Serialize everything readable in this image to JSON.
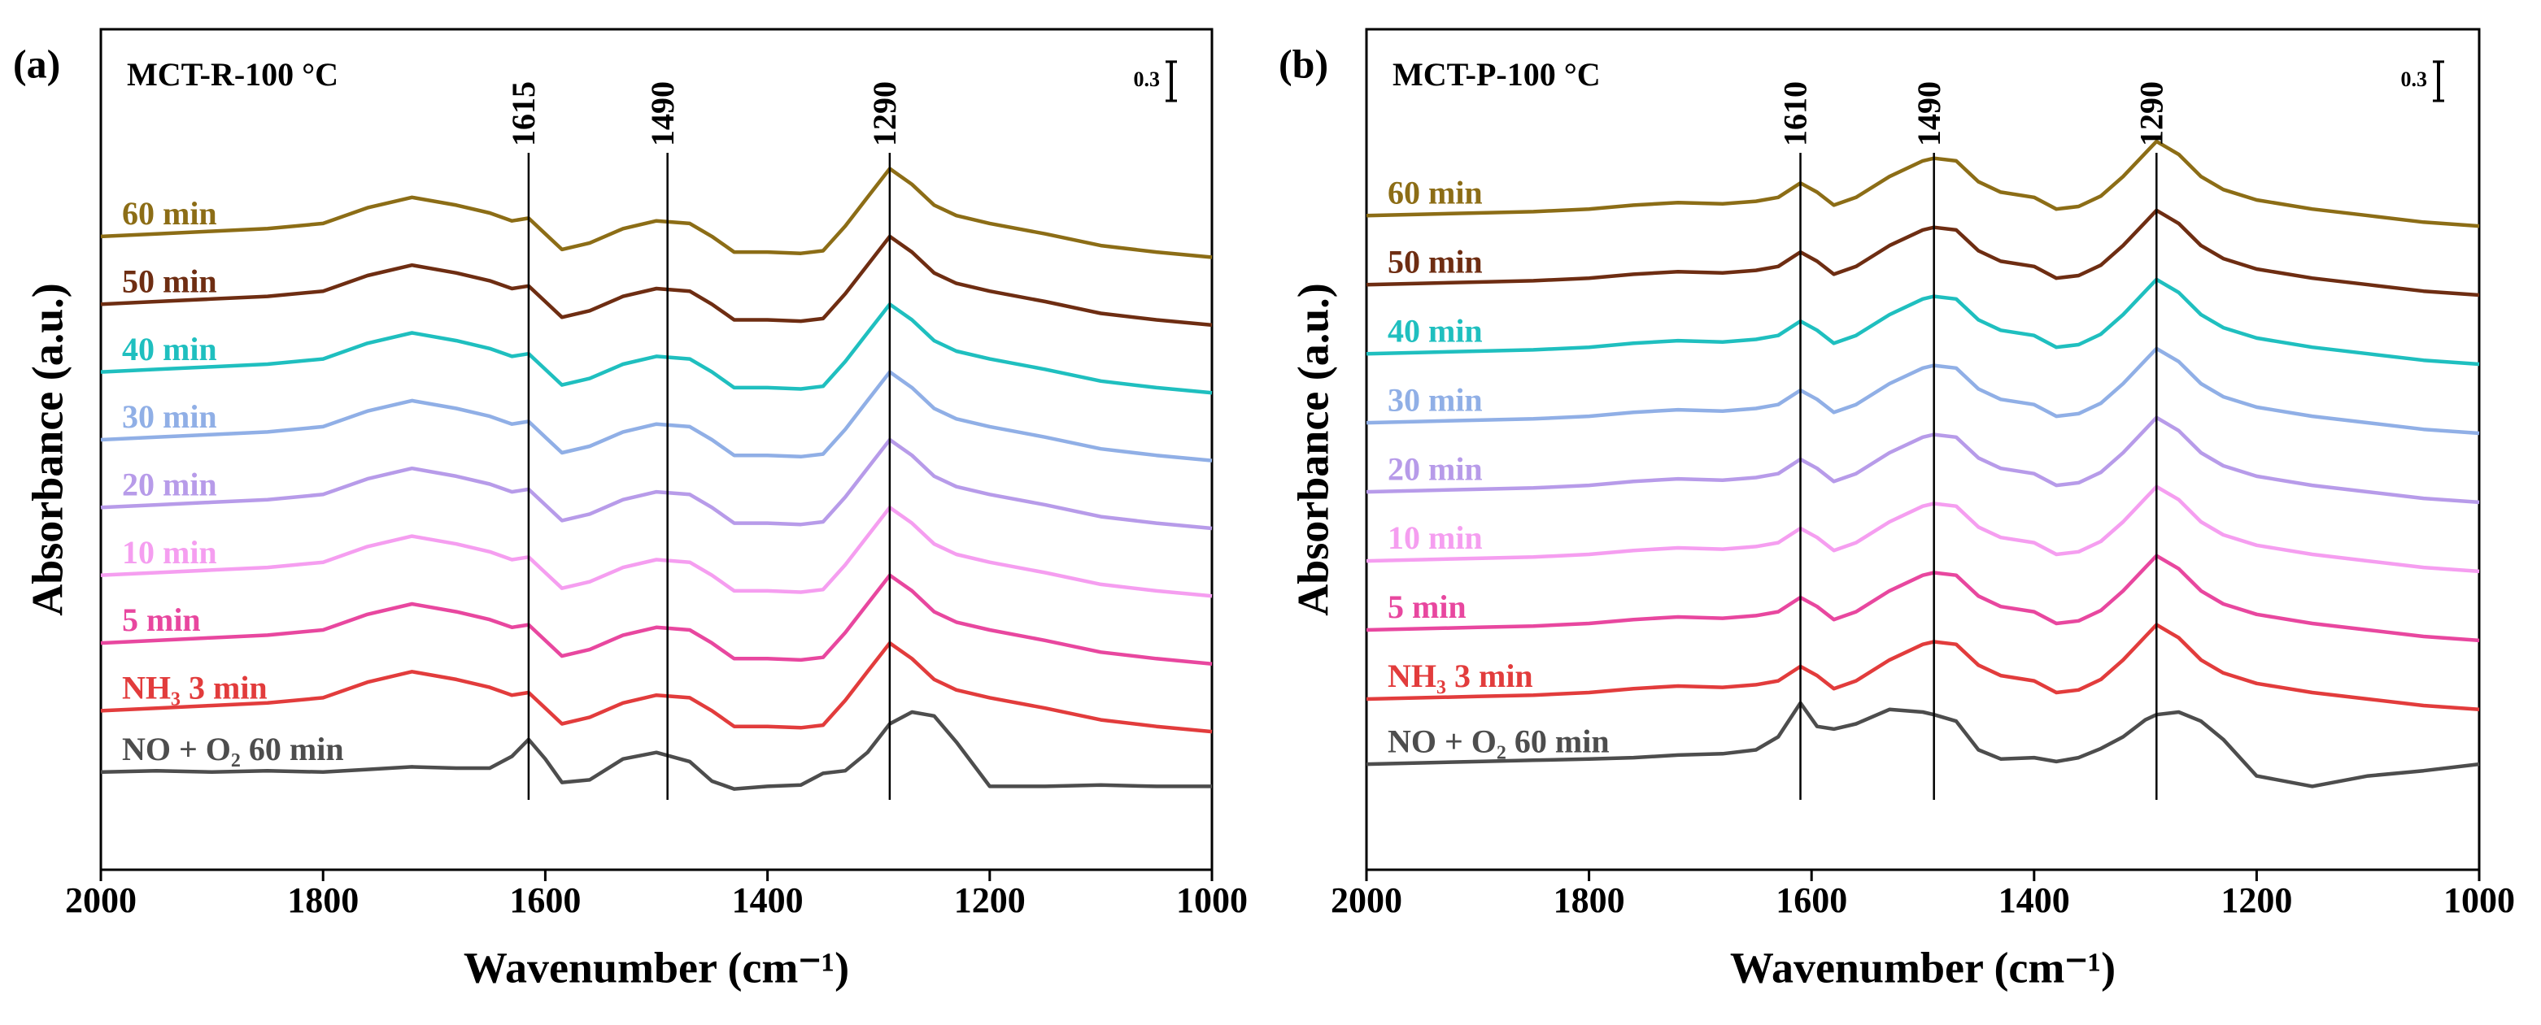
{
  "chart_data": [
    {
      "type": "line",
      "panel_label": "(a)",
      "title": "MCT-R-100 °C",
      "x_label": "Wavenumber (cm⁻¹)",
      "y_label": "Absorbance (a.u.)",
      "xlim": [
        2000,
        1000
      ],
      "xticks": [
        2000,
        1800,
        1600,
        1400,
        1200,
        1000
      ],
      "ylim": [
        0,
        6.45
      ],
      "scale_bar": 0.3,
      "peak_lines": [
        1615,
        1490,
        1290
      ],
      "x": [
        2000,
        1950,
        1900,
        1850,
        1800,
        1760,
        1720,
        1680,
        1650,
        1630,
        1615,
        1600,
        1585,
        1560,
        1530,
        1500,
        1470,
        1450,
        1430,
        1400,
        1370,
        1350,
        1330,
        1310,
        1290,
        1270,
        1250,
        1230,
        1200,
        1150,
        1100,
        1050,
        1000
      ],
      "series": [
        {
          "name": "NO + O₂ 60 min",
          "color": "#4d4d4d",
          "values": [
            0.75,
            0.76,
            0.75,
            0.76,
            0.75,
            0.77,
            0.79,
            0.78,
            0.78,
            0.87,
            1.0,
            0.85,
            0.67,
            0.69,
            0.85,
            0.9,
            0.83,
            0.68,
            0.62,
            0.64,
            0.65,
            0.74,
            0.76,
            0.9,
            1.12,
            1.21,
            1.18,
            0.98,
            0.64,
            0.64,
            0.65,
            0.64,
            0.64
          ]
        },
        {
          "name": "NH₃ 3 min",
          "color": "#e23c3c",
          "values": [
            1.22,
            1.24,
            1.26,
            1.28,
            1.32,
            1.44,
            1.52,
            1.46,
            1.4,
            1.34,
            1.36,
            1.24,
            1.12,
            1.17,
            1.28,
            1.34,
            1.32,
            1.22,
            1.1,
            1.1,
            1.09,
            1.11,
            1.3,
            1.52,
            1.74,
            1.62,
            1.46,
            1.38,
            1.32,
            1.24,
            1.15,
            1.1,
            1.06
          ]
        },
        {
          "name": "5 min",
          "color": "#e8479f",
          "values": [
            1.74,
            1.76,
            1.78,
            1.8,
            1.84,
            1.96,
            2.04,
            1.98,
            1.92,
            1.86,
            1.88,
            1.76,
            1.64,
            1.69,
            1.8,
            1.86,
            1.84,
            1.74,
            1.62,
            1.62,
            1.61,
            1.63,
            1.82,
            2.04,
            2.26,
            2.14,
            1.98,
            1.9,
            1.84,
            1.76,
            1.67,
            1.62,
            1.58
          ]
        },
        {
          "name": "10 min",
          "color": "#f59ef0",
          "values": [
            2.26,
            2.28,
            2.3,
            2.32,
            2.36,
            2.48,
            2.56,
            2.5,
            2.44,
            2.38,
            2.4,
            2.28,
            2.16,
            2.21,
            2.32,
            2.38,
            2.36,
            2.26,
            2.14,
            2.14,
            2.13,
            2.15,
            2.34,
            2.56,
            2.78,
            2.66,
            2.5,
            2.42,
            2.36,
            2.28,
            2.19,
            2.14,
            2.1
          ]
        },
        {
          "name": "20 min",
          "color": "#b79be9",
          "values": [
            2.78,
            2.8,
            2.82,
            2.84,
            2.88,
            3.0,
            3.08,
            3.02,
            2.96,
            2.9,
            2.92,
            2.8,
            2.68,
            2.73,
            2.84,
            2.9,
            2.88,
            2.78,
            2.66,
            2.66,
            2.65,
            2.67,
            2.86,
            3.08,
            3.3,
            3.18,
            3.02,
            2.94,
            2.88,
            2.8,
            2.71,
            2.66,
            2.62
          ]
        },
        {
          "name": "30 min",
          "color": "#90afe6",
          "values": [
            3.3,
            3.32,
            3.34,
            3.36,
            3.4,
            3.52,
            3.6,
            3.54,
            3.48,
            3.42,
            3.44,
            3.32,
            3.2,
            3.25,
            3.36,
            3.42,
            3.4,
            3.3,
            3.18,
            3.18,
            3.17,
            3.19,
            3.38,
            3.6,
            3.82,
            3.7,
            3.54,
            3.46,
            3.4,
            3.32,
            3.23,
            3.18,
            3.14
          ]
        },
        {
          "name": "40 min",
          "color": "#1fbfbf",
          "values": [
            3.82,
            3.84,
            3.86,
            3.88,
            3.92,
            4.04,
            4.12,
            4.06,
            4.0,
            3.94,
            3.96,
            3.84,
            3.72,
            3.77,
            3.88,
            3.94,
            3.92,
            3.82,
            3.7,
            3.7,
            3.69,
            3.71,
            3.9,
            4.12,
            4.34,
            4.22,
            4.06,
            3.98,
            3.92,
            3.84,
            3.75,
            3.7,
            3.66
          ]
        },
        {
          "name": "50 min",
          "color": "#6e2d12",
          "values": [
            4.34,
            4.36,
            4.38,
            4.4,
            4.44,
            4.56,
            4.64,
            4.58,
            4.52,
            4.46,
            4.48,
            4.36,
            4.24,
            4.29,
            4.4,
            4.46,
            4.44,
            4.34,
            4.22,
            4.22,
            4.21,
            4.23,
            4.42,
            4.64,
            4.86,
            4.74,
            4.58,
            4.5,
            4.44,
            4.36,
            4.27,
            4.22,
            4.18
          ]
        },
        {
          "name": "60 min",
          "color": "#8c6d16",
          "values": [
            4.86,
            4.88,
            4.9,
            4.92,
            4.96,
            5.08,
            5.16,
            5.1,
            5.04,
            4.98,
            5.0,
            4.88,
            4.76,
            4.81,
            4.92,
            4.98,
            4.96,
            4.86,
            4.74,
            4.74,
            4.73,
            4.75,
            4.94,
            5.16,
            5.38,
            5.26,
            5.1,
            5.02,
            4.96,
            4.88,
            4.79,
            4.74,
            4.7
          ]
        }
      ]
    },
    {
      "type": "line",
      "panel_label": "(b)",
      "title": "MCT-P-100 °C",
      "x_label": "Wavenumber (cm⁻¹)",
      "y_label": "Absorbance (a.u.)",
      "xlim": [
        2000,
        1000
      ],
      "xticks": [
        2000,
        1800,
        1600,
        1400,
        1200,
        1000
      ],
      "ylim": [
        0,
        6.45
      ],
      "scale_bar": 0.3,
      "peak_lines": [
        1610,
        1490,
        1290
      ],
      "x": [
        2000,
        1950,
        1900,
        1850,
        1800,
        1760,
        1720,
        1680,
        1650,
        1630,
        1610,
        1595,
        1580,
        1560,
        1530,
        1500,
        1490,
        1470,
        1450,
        1430,
        1400,
        1380,
        1360,
        1340,
        1320,
        1300,
        1290,
        1270,
        1250,
        1230,
        1200,
        1150,
        1100,
        1050,
        1000
      ],
      "series": [
        {
          "name": "NO + O₂ 60 min",
          "color": "#4d4d4d",
          "values": [
            0.81,
            0.82,
            0.83,
            0.84,
            0.85,
            0.86,
            0.88,
            0.89,
            0.92,
            1.02,
            1.28,
            1.1,
            1.08,
            1.12,
            1.23,
            1.21,
            1.19,
            1.14,
            0.92,
            0.85,
            0.86,
            0.83,
            0.86,
            0.93,
            1.02,
            1.15,
            1.19,
            1.21,
            1.14,
            1.0,
            0.72,
            0.64,
            0.72,
            0.76,
            0.81
          ]
        },
        {
          "name": "NH₃ 3 min",
          "color": "#e23c3c",
          "values": [
            1.31,
            1.32,
            1.33,
            1.34,
            1.36,
            1.39,
            1.41,
            1.4,
            1.42,
            1.45,
            1.56,
            1.49,
            1.39,
            1.45,
            1.61,
            1.73,
            1.75,
            1.73,
            1.57,
            1.49,
            1.45,
            1.36,
            1.38,
            1.46,
            1.61,
            1.79,
            1.88,
            1.78,
            1.61,
            1.51,
            1.43,
            1.36,
            1.31,
            1.26,
            1.23
          ]
        },
        {
          "name": "5 min",
          "color": "#e8479f",
          "values": [
            1.84,
            1.85,
            1.86,
            1.87,
            1.89,
            1.92,
            1.94,
            1.93,
            1.95,
            1.98,
            2.09,
            2.02,
            1.92,
            1.98,
            2.14,
            2.26,
            2.28,
            2.26,
            2.1,
            2.02,
            1.98,
            1.89,
            1.91,
            1.99,
            2.14,
            2.32,
            2.41,
            2.31,
            2.14,
            2.04,
            1.96,
            1.89,
            1.84,
            1.79,
            1.76
          ]
        },
        {
          "name": "10 min",
          "color": "#f59ef0",
          "values": [
            2.37,
            2.38,
            2.39,
            2.4,
            2.42,
            2.45,
            2.47,
            2.46,
            2.48,
            2.51,
            2.62,
            2.55,
            2.45,
            2.51,
            2.67,
            2.79,
            2.81,
            2.79,
            2.63,
            2.55,
            2.51,
            2.42,
            2.44,
            2.52,
            2.67,
            2.85,
            2.94,
            2.84,
            2.67,
            2.57,
            2.49,
            2.42,
            2.37,
            2.32,
            2.29
          ]
        },
        {
          "name": "20 min",
          "color": "#b79be9",
          "values": [
            2.9,
            2.91,
            2.92,
            2.93,
            2.95,
            2.98,
            3.0,
            2.99,
            3.01,
            3.04,
            3.15,
            3.08,
            2.98,
            3.04,
            3.2,
            3.32,
            3.34,
            3.32,
            3.16,
            3.08,
            3.04,
            2.95,
            2.97,
            3.05,
            3.2,
            3.38,
            3.47,
            3.37,
            3.2,
            3.1,
            3.02,
            2.95,
            2.9,
            2.85,
            2.82
          ]
        },
        {
          "name": "30 min",
          "color": "#90afe6",
          "values": [
            3.43,
            3.44,
            3.45,
            3.46,
            3.48,
            3.51,
            3.53,
            3.52,
            3.54,
            3.57,
            3.68,
            3.61,
            3.51,
            3.57,
            3.73,
            3.85,
            3.87,
            3.85,
            3.69,
            3.61,
            3.57,
            3.48,
            3.5,
            3.58,
            3.73,
            3.91,
            4.0,
            3.9,
            3.73,
            3.63,
            3.55,
            3.48,
            3.43,
            3.38,
            3.35
          ]
        },
        {
          "name": "40 min",
          "color": "#1fbfbf",
          "values": [
            3.96,
            3.97,
            3.98,
            3.99,
            4.01,
            4.04,
            4.06,
            4.05,
            4.07,
            4.1,
            4.21,
            4.14,
            4.04,
            4.1,
            4.26,
            4.38,
            4.4,
            4.38,
            4.22,
            4.14,
            4.1,
            4.01,
            4.03,
            4.11,
            4.26,
            4.44,
            4.53,
            4.43,
            4.26,
            4.16,
            4.08,
            4.01,
            3.96,
            3.91,
            3.88
          ]
        },
        {
          "name": "50 min",
          "color": "#6e2d12",
          "values": [
            4.49,
            4.5,
            4.51,
            4.52,
            4.54,
            4.57,
            4.59,
            4.58,
            4.6,
            4.63,
            4.74,
            4.67,
            4.57,
            4.63,
            4.79,
            4.91,
            4.93,
            4.91,
            4.75,
            4.67,
            4.63,
            4.54,
            4.56,
            4.64,
            4.79,
            4.97,
            5.06,
            4.96,
            4.79,
            4.69,
            4.61,
            4.54,
            4.49,
            4.44,
            4.41
          ]
        },
        {
          "name": "60 min",
          "color": "#8c6d16",
          "values": [
            5.02,
            5.03,
            5.04,
            5.05,
            5.07,
            5.1,
            5.12,
            5.11,
            5.13,
            5.16,
            5.27,
            5.2,
            5.1,
            5.16,
            5.32,
            5.44,
            5.46,
            5.44,
            5.28,
            5.2,
            5.16,
            5.07,
            5.09,
            5.17,
            5.32,
            5.5,
            5.59,
            5.49,
            5.32,
            5.22,
            5.14,
            5.07,
            5.02,
            4.97,
            4.94
          ]
        }
      ]
    }
  ]
}
